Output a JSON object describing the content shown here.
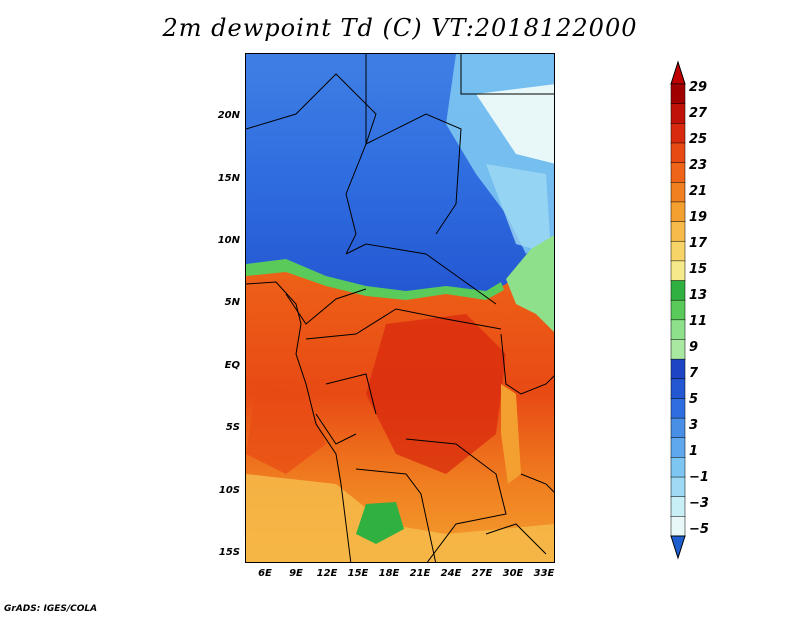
{
  "title": "2m dewpoint Td (C) VT:2018122000",
  "credit": "GrADS: IGES/COLA",
  "axes": {
    "y_ticks": [
      "20N",
      "15N",
      "10N",
      "5N",
      "EQ",
      "5S",
      "10S",
      "15S"
    ],
    "x_ticks": [
      "6E",
      "9E",
      "12E",
      "15E",
      "18E",
      "21E",
      "24E",
      "27E",
      "30E",
      "33E"
    ]
  },
  "colorbar": {
    "labels": [
      "29",
      "27",
      "25",
      "23",
      "21",
      "19",
      "17",
      "15",
      "13",
      "11",
      "9",
      "7",
      "5",
      "3",
      "1",
      "−1",
      "−3",
      "−5"
    ],
    "colors": [
      "#e8f7f8",
      "#c8eef6",
      "#9fdaf4",
      "#7dc6f2",
      "#5fa8ee",
      "#4a8fe6",
      "#2f6ee0",
      "#2457d2",
      "#1e45c4",
      "#a8e8a0",
      "#8fe08a",
      "#5acb5a",
      "#30b040",
      "#f5e98a",
      "#f7d468",
      "#f6bb4a",
      "#f4a030",
      "#f08020",
      "#ee6418",
      "#e84a14",
      "#d82a0e",
      "#c01208",
      "#a00000"
    ],
    "under_color": "#1e5fd0",
    "over_color": "#c00000"
  },
  "chart_data": {
    "type": "heatmap",
    "title": "2m dewpoint Td (C) VT:2018122000",
    "variable": "2m dewpoint Td (C)",
    "valid_time": "2018122000",
    "lon_range": [
      3,
      34
    ],
    "lat_range": [
      -16,
      25
    ],
    "color_levels": [
      -5,
      -3,
      -1,
      1,
      3,
      5,
      7,
      9,
      11,
      13,
      15,
      17,
      19,
      21,
      23,
      25,
      27,
      29
    ]
  }
}
